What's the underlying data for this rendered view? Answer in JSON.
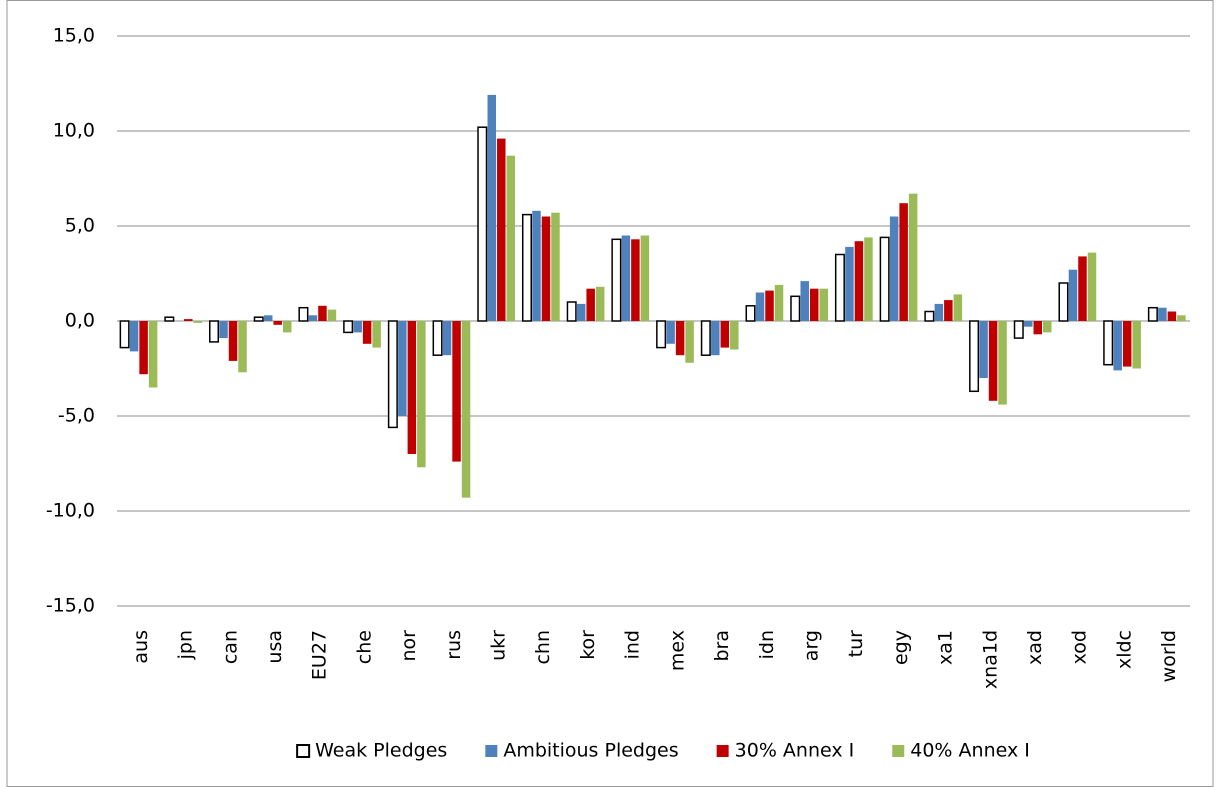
{
  "chart_data": {
    "type": "bar",
    "categories": [
      "aus",
      "jpn",
      "can",
      "usa",
      "EU27",
      "che",
      "nor",
      "rus",
      "ukr",
      "chn",
      "kor",
      "ind",
      "mex",
      "bra",
      "idn",
      "arg",
      "tur",
      "egy",
      "xa1",
      "xna1d",
      "xad",
      "xod",
      "xldc",
      "world"
    ],
    "series": [
      {
        "name": "Weak Pledges",
        "color": "#ffffff",
        "values": [
          -1.4,
          0.2,
          -1.1,
          0.2,
          0.7,
          -0.6,
          -5.6,
          -1.8,
          10.2,
          5.6,
          1.0,
          4.3,
          -1.4,
          -1.8,
          0.8,
          1.3,
          3.5,
          4.4,
          0.5,
          -3.7,
          -0.9,
          2.0,
          -2.3,
          0.7
        ]
      },
      {
        "name": "Ambitious Pledges",
        "color": "#4f81bd",
        "values": [
          -1.6,
          0.0,
          -0.9,
          0.3,
          0.3,
          -0.6,
          -5.0,
          -1.8,
          11.9,
          5.8,
          0.9,
          4.5,
          -1.2,
          -1.8,
          1.5,
          2.1,
          3.9,
          5.5,
          0.9,
          -3.0,
          -0.3,
          2.7,
          -2.6,
          0.7
        ]
      },
      {
        "name": "30% Annex I",
        "color": "#c00000",
        "values": [
          -2.8,
          0.1,
          -2.1,
          -0.2,
          0.8,
          -1.2,
          -7.0,
          -7.4,
          9.6,
          5.5,
          1.7,
          4.3,
          -1.8,
          -1.4,
          1.6,
          1.7,
          4.2,
          6.2,
          1.1,
          -4.2,
          -0.7,
          3.4,
          -2.4,
          0.5
        ]
      },
      {
        "name": "40% Annex I",
        "color": "#9bbb59",
        "values": [
          -3.5,
          -0.1,
          -2.7,
          -0.6,
          0.6,
          -1.4,
          -7.7,
          -9.3,
          8.7,
          5.7,
          1.8,
          4.5,
          -2.2,
          -1.5,
          1.9,
          1.7,
          4.4,
          6.7,
          1.4,
          -4.4,
          -0.6,
          3.6,
          -2.5,
          0.3
        ]
      }
    ],
    "ylim": [
      -15,
      15
    ],
    "yticks": [
      {
        "value": -15,
        "label": "-15,0"
      },
      {
        "value": -10,
        "label": "-10,0"
      },
      {
        "value": -5,
        "label": "-5,0"
      },
      {
        "value": 0,
        "label": "0,0"
      },
      {
        "value": 5,
        "label": "5,0"
      },
      {
        "value": 10,
        "label": "10,0"
      },
      {
        "value": 15,
        "label": "15,0"
      }
    ],
    "grid": true,
    "legend": "bottom"
  }
}
